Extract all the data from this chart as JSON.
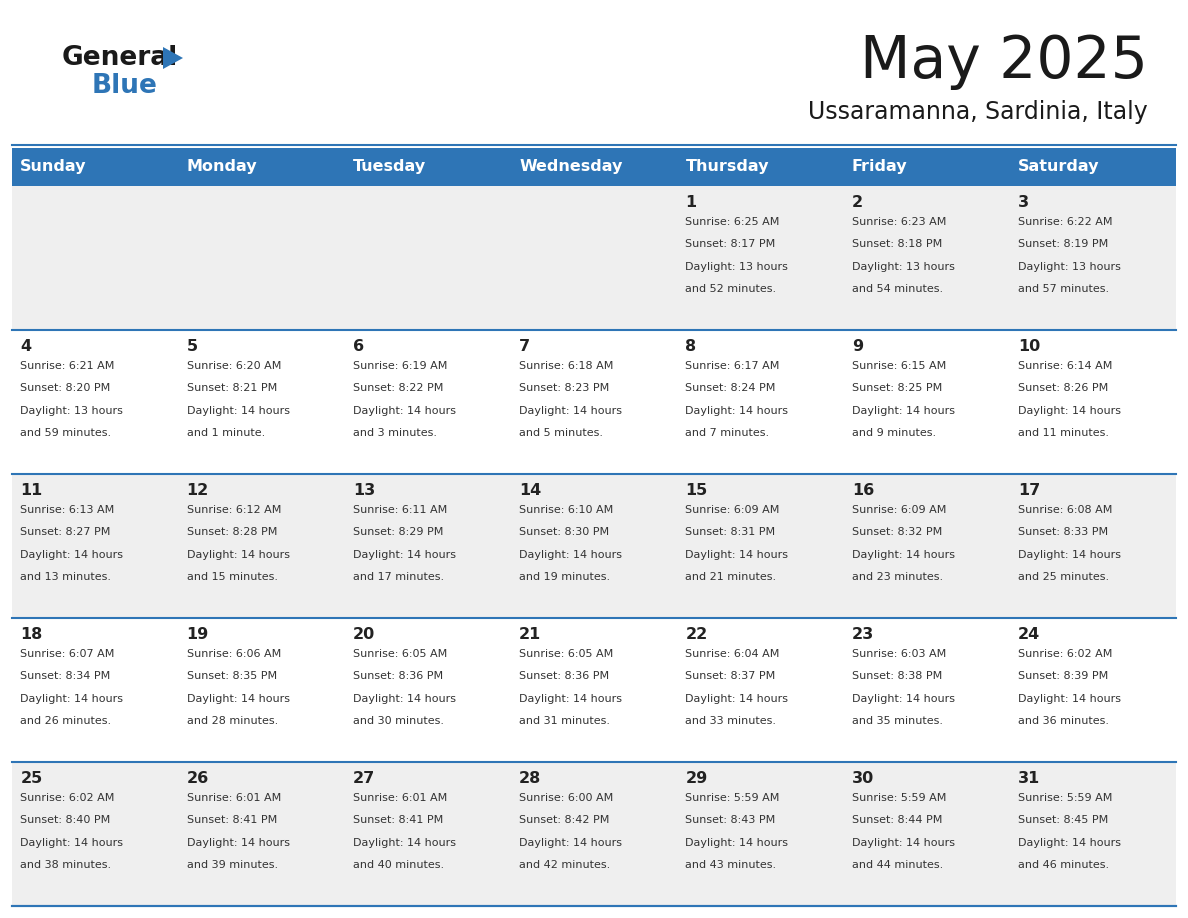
{
  "title": "May 2025",
  "subtitle": "Ussaramanna, Sardinia, Italy",
  "days_of_week": [
    "Sunday",
    "Monday",
    "Tuesday",
    "Wednesday",
    "Thursday",
    "Friday",
    "Saturday"
  ],
  "header_bg": "#2e75b6",
  "header_text": "#ffffff",
  "row_bg_odd": "#efefef",
  "row_bg_even": "#ffffff",
  "cell_border": "#2e75b6",
  "day_num_color": "#222222",
  "info_text_color": "#333333",
  "calendar_data": [
    [
      null,
      null,
      null,
      null,
      {
        "day": 1,
        "sunrise": "6:25 AM",
        "sunset": "8:17 PM",
        "daylight": "13 hours and 52 minutes."
      },
      {
        "day": 2,
        "sunrise": "6:23 AM",
        "sunset": "8:18 PM",
        "daylight": "13 hours and 54 minutes."
      },
      {
        "day": 3,
        "sunrise": "6:22 AM",
        "sunset": "8:19 PM",
        "daylight": "13 hours and 57 minutes."
      }
    ],
    [
      {
        "day": 4,
        "sunrise": "6:21 AM",
        "sunset": "8:20 PM",
        "daylight": "13 hours and 59 minutes."
      },
      {
        "day": 5,
        "sunrise": "6:20 AM",
        "sunset": "8:21 PM",
        "daylight": "14 hours and 1 minute."
      },
      {
        "day": 6,
        "sunrise": "6:19 AM",
        "sunset": "8:22 PM",
        "daylight": "14 hours and 3 minutes."
      },
      {
        "day": 7,
        "sunrise": "6:18 AM",
        "sunset": "8:23 PM",
        "daylight": "14 hours and 5 minutes."
      },
      {
        "day": 8,
        "sunrise": "6:17 AM",
        "sunset": "8:24 PM",
        "daylight": "14 hours and 7 minutes."
      },
      {
        "day": 9,
        "sunrise": "6:15 AM",
        "sunset": "8:25 PM",
        "daylight": "14 hours and 9 minutes."
      },
      {
        "day": 10,
        "sunrise": "6:14 AM",
        "sunset": "8:26 PM",
        "daylight": "14 hours and 11 minutes."
      }
    ],
    [
      {
        "day": 11,
        "sunrise": "6:13 AM",
        "sunset": "8:27 PM",
        "daylight": "14 hours and 13 minutes."
      },
      {
        "day": 12,
        "sunrise": "6:12 AM",
        "sunset": "8:28 PM",
        "daylight": "14 hours and 15 minutes."
      },
      {
        "day": 13,
        "sunrise": "6:11 AM",
        "sunset": "8:29 PM",
        "daylight": "14 hours and 17 minutes."
      },
      {
        "day": 14,
        "sunrise": "6:10 AM",
        "sunset": "8:30 PM",
        "daylight": "14 hours and 19 minutes."
      },
      {
        "day": 15,
        "sunrise": "6:09 AM",
        "sunset": "8:31 PM",
        "daylight": "14 hours and 21 minutes."
      },
      {
        "day": 16,
        "sunrise": "6:09 AM",
        "sunset": "8:32 PM",
        "daylight": "14 hours and 23 minutes."
      },
      {
        "day": 17,
        "sunrise": "6:08 AM",
        "sunset": "8:33 PM",
        "daylight": "14 hours and 25 minutes."
      }
    ],
    [
      {
        "day": 18,
        "sunrise": "6:07 AM",
        "sunset": "8:34 PM",
        "daylight": "14 hours and 26 minutes."
      },
      {
        "day": 19,
        "sunrise": "6:06 AM",
        "sunset": "8:35 PM",
        "daylight": "14 hours and 28 minutes."
      },
      {
        "day": 20,
        "sunrise": "6:05 AM",
        "sunset": "8:36 PM",
        "daylight": "14 hours and 30 minutes."
      },
      {
        "day": 21,
        "sunrise": "6:05 AM",
        "sunset": "8:36 PM",
        "daylight": "14 hours and 31 minutes."
      },
      {
        "day": 22,
        "sunrise": "6:04 AM",
        "sunset": "8:37 PM",
        "daylight": "14 hours and 33 minutes."
      },
      {
        "day": 23,
        "sunrise": "6:03 AM",
        "sunset": "8:38 PM",
        "daylight": "14 hours and 35 minutes."
      },
      {
        "day": 24,
        "sunrise": "6:02 AM",
        "sunset": "8:39 PM",
        "daylight": "14 hours and 36 minutes."
      }
    ],
    [
      {
        "day": 25,
        "sunrise": "6:02 AM",
        "sunset": "8:40 PM",
        "daylight": "14 hours and 38 minutes."
      },
      {
        "day": 26,
        "sunrise": "6:01 AM",
        "sunset": "8:41 PM",
        "daylight": "14 hours and 39 minutes."
      },
      {
        "day": 27,
        "sunrise": "6:01 AM",
        "sunset": "8:41 PM",
        "daylight": "14 hours and 40 minutes."
      },
      {
        "day": 28,
        "sunrise": "6:00 AM",
        "sunset": "8:42 PM",
        "daylight": "14 hours and 42 minutes."
      },
      {
        "day": 29,
        "sunrise": "5:59 AM",
        "sunset": "8:43 PM",
        "daylight": "14 hours and 43 minutes."
      },
      {
        "day": 30,
        "sunrise": "5:59 AM",
        "sunset": "8:44 PM",
        "daylight": "14 hours and 44 minutes."
      },
      {
        "day": 31,
        "sunrise": "5:59 AM",
        "sunset": "8:45 PM",
        "daylight": "14 hours and 46 minutes."
      }
    ]
  ]
}
